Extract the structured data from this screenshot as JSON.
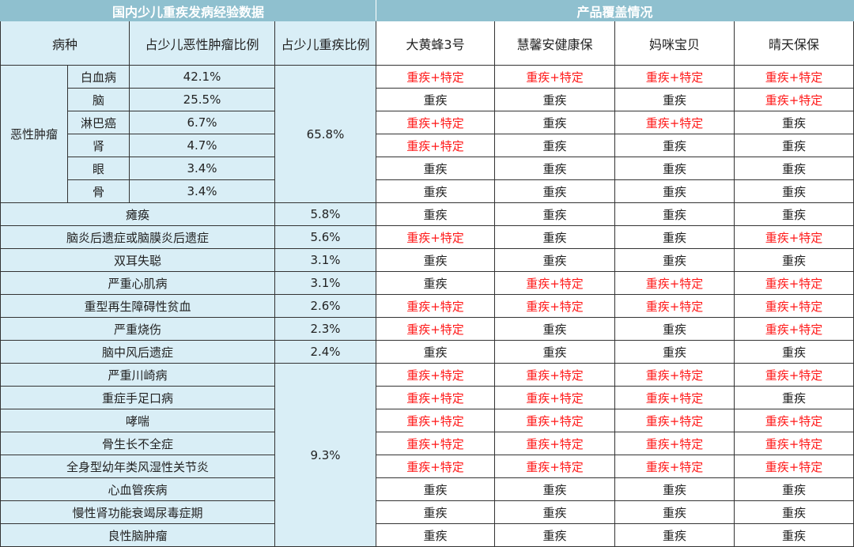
{
  "title_left": "国内少儿重疾发病经验数据",
  "title_right": "产品覆盖情况",
  "headers": {
    "disease": "病种",
    "tumor_ratio": "占少儿恶性肿瘤比例",
    "ci_ratio": "占少儿重疾比例",
    "products": [
      "大黄蜂3号",
      "慧馨安健康保",
      "妈咪宝贝",
      "晴天保保"
    ]
  },
  "colors": {
    "band": "#8fc0cf",
    "light_blue": "#d9eef6",
    "red_text": "#ff1a1a"
  },
  "legend": {
    "ci": "重疾",
    "ci_plus": "重疾+特定"
  },
  "tumor_group": {
    "label": "恶性肿瘤",
    "ci_ratio": "65.8%",
    "rows": [
      {
        "name": "白血病",
        "ratio": "42.1%",
        "cov": [
          "重疾+特定",
          "重疾+特定",
          "重疾+特定",
          "重疾+特定"
        ]
      },
      {
        "name": "脑",
        "ratio": "25.5%",
        "cov": [
          "重疾",
          "重疾",
          "重疾",
          "重疾+特定"
        ]
      },
      {
        "name": "淋巴癌",
        "ratio": "6.7%",
        "cov": [
          "重疾+特定",
          "重疾",
          "重疾+特定",
          "重疾"
        ]
      },
      {
        "name": "肾",
        "ratio": "4.7%",
        "cov": [
          "重疾+特定",
          "重疾",
          "重疾",
          "重疾"
        ]
      },
      {
        "name": "眼",
        "ratio": "3.4%",
        "cov": [
          "重疾",
          "重疾",
          "重疾",
          "重疾"
        ]
      },
      {
        "name": "骨",
        "ratio": "3.4%",
        "cov": [
          "重疾",
          "重疾",
          "重疾",
          "重疾"
        ]
      }
    ]
  },
  "single_rows": [
    {
      "name": "瘫痪",
      "ci_ratio": "5.8%",
      "cov": [
        "重疾",
        "重疾",
        "重疾",
        "重疾"
      ]
    },
    {
      "name": "脑炎后遗症或脑膜炎后遗症",
      "ci_ratio": "5.6%",
      "cov": [
        "重疾+特定",
        "重疾",
        "重疾",
        "重疾+特定"
      ]
    },
    {
      "name": "双耳失聪",
      "ci_ratio": "3.1%",
      "cov": [
        "重疾",
        "重疾",
        "重疾",
        "重疾"
      ]
    },
    {
      "name": "严重心肌病",
      "ci_ratio": "3.1%",
      "cov": [
        "重疾",
        "重疾+特定",
        "重疾+特定",
        "重疾+特定"
      ]
    },
    {
      "name": "重型再生障碍性贫血",
      "ci_ratio": "2.6%",
      "cov": [
        "重疾+特定",
        "重疾+特定",
        "重疾+特定",
        "重疾+特定"
      ]
    },
    {
      "name": "严重烧伤",
      "ci_ratio": "2.3%",
      "cov": [
        "重疾+特定",
        "重疾",
        "重疾",
        "重疾+特定"
      ]
    },
    {
      "name": "脑中风后遗症",
      "ci_ratio": "2.4%",
      "cov": [
        "重疾",
        "重疾",
        "重疾",
        "重疾"
      ]
    }
  ],
  "other_group": {
    "ci_ratio": "9.3%",
    "rows": [
      {
        "name": "严重川崎病",
        "cov": [
          "重疾+特定",
          "重疾+特定",
          "重疾+特定",
          "重疾+特定"
        ]
      },
      {
        "name": "重症手足口病",
        "cov": [
          "重疾+特定",
          "重疾+特定",
          "重疾+特定",
          "重疾"
        ]
      },
      {
        "name": "哮喘",
        "cov": [
          "重疾+特定",
          "重疾+特定",
          "重疾+特定",
          "重疾+特定"
        ]
      },
      {
        "name": "骨生长不全症",
        "cov": [
          "重疾+特定",
          "重疾+特定",
          "重疾+特定",
          "重疾+特定"
        ]
      },
      {
        "name": "全身型幼年类风湿性关节炎",
        "cov": [
          "重疾+特定",
          "重疾+特定",
          "重疾+特定",
          "重疾+特定"
        ]
      },
      {
        "name": "心血管疾病",
        "cov": [
          "重疾",
          "重疾",
          "重疾",
          "重疾"
        ]
      },
      {
        "name": "慢性肾功能衰竭尿毒症期",
        "cov": [
          "重疾",
          "重疾",
          "重疾",
          "重疾"
        ]
      },
      {
        "name": "良性脑肿瘤",
        "cov": [
          "重疾",
          "重疾",
          "重疾",
          "重疾"
        ]
      }
    ]
  }
}
